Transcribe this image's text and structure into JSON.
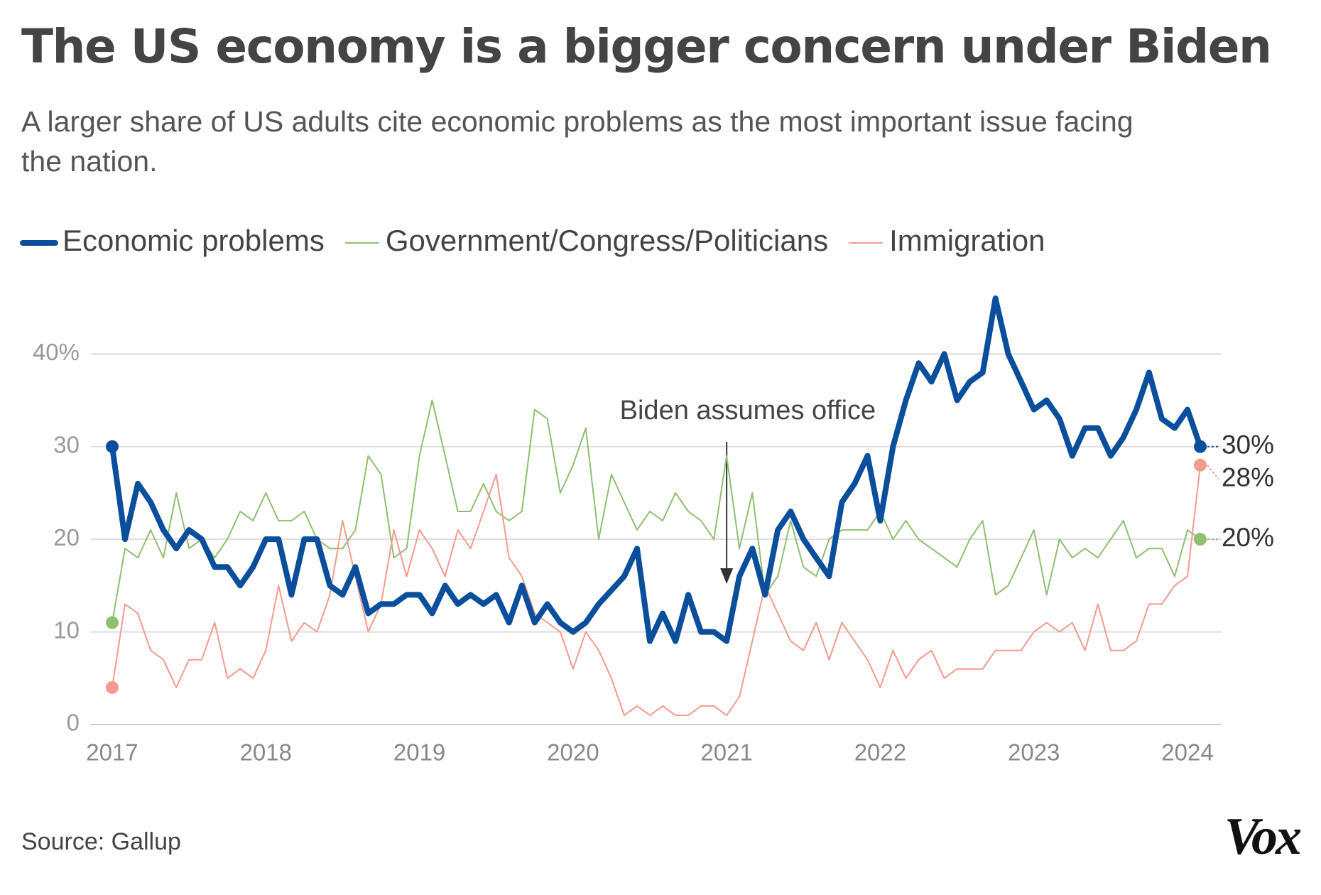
{
  "chart_data": {
    "type": "line",
    "title": "The US economy is a bigger concern under Biden",
    "subtitle": [
      "A larger share of US adults cite economic problems as the most important issue facing",
      "the nation."
    ],
    "source": "Source: Gallup",
    "brand": "Vox",
    "annotation": {
      "text": "Biden assumes office",
      "x": 2021
    },
    "x": [
      2017,
      2017.083,
      2017.167,
      2017.25,
      2017.333,
      2017.417,
      2017.5,
      2017.583,
      2017.667,
      2017.75,
      2017.833,
      2017.917,
      2018,
      2018.083,
      2018.167,
      2018.25,
      2018.333,
      2018.417,
      2018.5,
      2018.583,
      2018.667,
      2018.75,
      2018.833,
      2018.917,
      2019,
      2019.083,
      2019.167,
      2019.25,
      2019.333,
      2019.417,
      2019.5,
      2019.583,
      2019.667,
      2019.75,
      2019.833,
      2019.917,
      2020,
      2020.083,
      2020.167,
      2020.25,
      2020.333,
      2020.417,
      2020.5,
      2020.583,
      2020.667,
      2020.75,
      2020.833,
      2020.917,
      2021,
      2021.083,
      2021.167,
      2021.25,
      2021.333,
      2021.417,
      2021.5,
      2021.583,
      2021.667,
      2021.75,
      2021.833,
      2021.917,
      2022,
      2022.083,
      2022.167,
      2022.25,
      2022.333,
      2022.417,
      2022.5,
      2022.583,
      2022.667,
      2022.75,
      2022.833,
      2022.917,
      2023,
      2023.083,
      2023.167,
      2023.25,
      2023.333,
      2023.417,
      2023.5,
      2023.583,
      2023.667,
      2023.75,
      2023.833,
      2023.917,
      2024,
      2024.083
    ],
    "series": [
      {
        "name": "Government/Congress/Politicians",
        "color": "#8fbf70",
        "width": 2,
        "end_label": "20%",
        "values": [
          11,
          19,
          18,
          21,
          18,
          25,
          19,
          20,
          18,
          20,
          23,
          22,
          25,
          22,
          22,
          23,
          20,
          19,
          19,
          21,
          29,
          27,
          18,
          19,
          29,
          35,
          29,
          23,
          23,
          26,
          23,
          22,
          23,
          34,
          33,
          25,
          28,
          32,
          20,
          27,
          24,
          21,
          23,
          22,
          25,
          23,
          22,
          20,
          29,
          19,
          25,
          14,
          16,
          22,
          17,
          16,
          20,
          21,
          21,
          21,
          23,
          20,
          22,
          20,
          19,
          18,
          17,
          20,
          22,
          14,
          15,
          18,
          21,
          14,
          20,
          18,
          19,
          18,
          20,
          22,
          18,
          19,
          19,
          16,
          21,
          20
        ]
      },
      {
        "name": "Immigration",
        "color": "#f59a8e",
        "width": 2,
        "end_label": "28%",
        "values": [
          4,
          13,
          12,
          8,
          7,
          4,
          7,
          7,
          11,
          5,
          6,
          5,
          8,
          15,
          9,
          11,
          10,
          14,
          22,
          16,
          10,
          13,
          21,
          16,
          21,
          19,
          16,
          21,
          19,
          23,
          27,
          18,
          16,
          12,
          11,
          10,
          6,
          10,
          8,
          5,
          1,
          2,
          1,
          2,
          1,
          1,
          2,
          2,
          1,
          3,
          9,
          15,
          12,
          9,
          8,
          11,
          7,
          11,
          9,
          7,
          4,
          8,
          5,
          7,
          8,
          5,
          6,
          6,
          6,
          8,
          8,
          8,
          10,
          11,
          10,
          11,
          8,
          13,
          8,
          8,
          9,
          13,
          13,
          15,
          16,
          28
        ]
      },
      {
        "name": "Economic problems",
        "color": "#0b4f9c",
        "width": 8,
        "end_label": "30%",
        "values": [
          30,
          20,
          26,
          24,
          21,
          19,
          21,
          20,
          17,
          17,
          15,
          17,
          20,
          20,
          14,
          20,
          20,
          15,
          14,
          17,
          12,
          13,
          13,
          14,
          14,
          12,
          15,
          13,
          14,
          13,
          14,
          11,
          15,
          11,
          13,
          11,
          10,
          11,
          13,
          14.5,
          16,
          19,
          9,
          12,
          9,
          14,
          10,
          10,
          9,
          16,
          19,
          14,
          21,
          23,
          20,
          18,
          16,
          24,
          26,
          29,
          22,
          30,
          35,
          39,
          37,
          40,
          35,
          37,
          38,
          46,
          40,
          37,
          34,
          35,
          33,
          29,
          32,
          32,
          29,
          31,
          34,
          38,
          33,
          32,
          34,
          30
        ]
      }
    ],
    "legend_order": [
      2,
      0,
      1
    ],
    "xlim": [
      2017,
      2024
    ],
    "xticks": [
      2017,
      2018,
      2019,
      2020,
      2021,
      2022,
      2023,
      2024
    ],
    "ylim": [
      0,
      47
    ],
    "yticks": [
      0,
      10,
      20,
      30,
      {
        "value": 40,
        "label": "40%"
      }
    ],
    "grid": true
  }
}
